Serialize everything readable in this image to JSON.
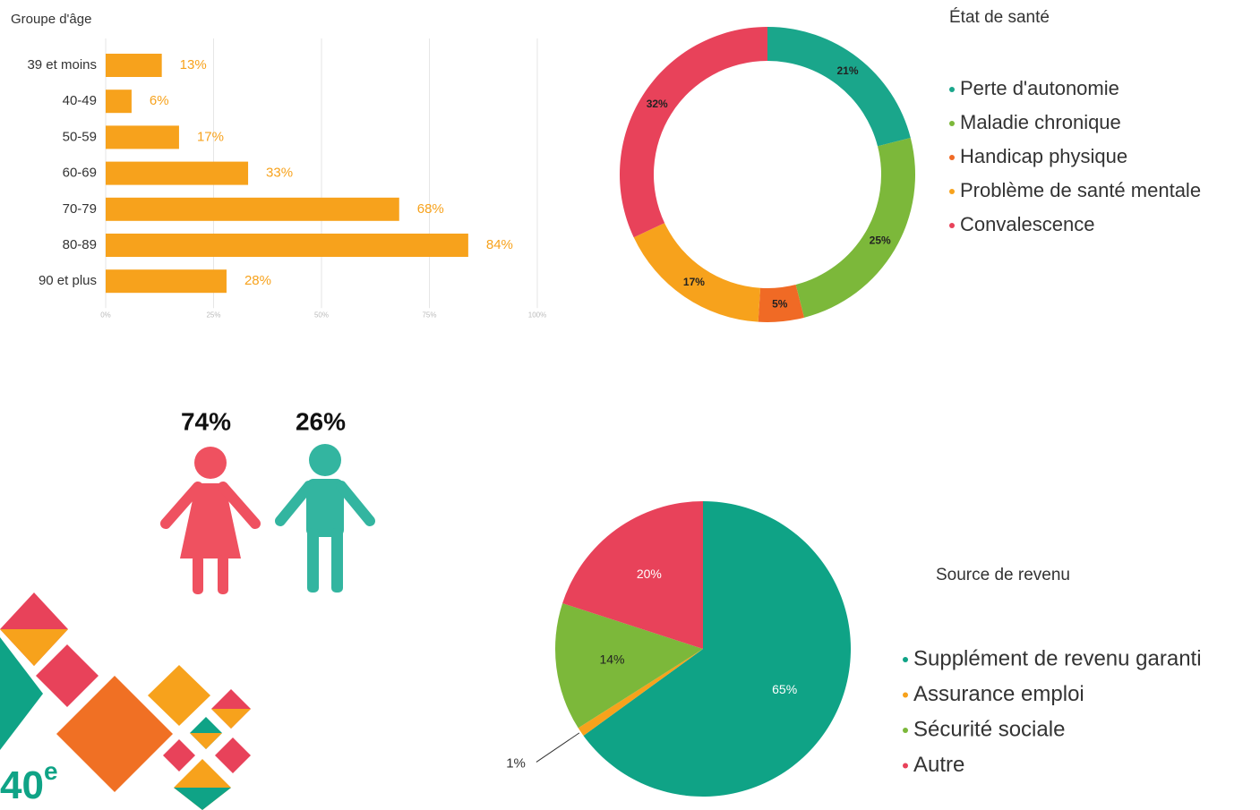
{
  "chart_data": [
    {
      "type": "bar",
      "orientation": "horizontal",
      "title": "Groupe d'âge",
      "categories": [
        "39 et moins",
        "40-49",
        "50-59",
        "60-69",
        "70-79",
        "80-89",
        "90 et plus"
      ],
      "values": [
        13,
        6,
        17,
        33,
        68,
        84,
        28
      ],
      "value_labels": [
        "13%",
        "6%",
        "17%",
        "33%",
        "68%",
        "84%",
        "28%"
      ],
      "color": "#f7a21c",
      "xlim": [
        0,
        100
      ],
      "xticks": [
        {
          "value": 0,
          "label": "0%"
        },
        {
          "value": 25,
          "label": "25%"
        },
        {
          "value": 50,
          "label": "50%"
        },
        {
          "value": 75,
          "label": "75%"
        },
        {
          "value": 100,
          "label": "100%"
        }
      ],
      "grid": true
    },
    {
      "type": "donut",
      "title": "État de santé",
      "categories": [
        "Perte d'autonomie",
        "Maladie chronique",
        "Handicap physique",
        "Problème de santé mentale",
        "Convalescence"
      ],
      "values": [
        21,
        25,
        5,
        17,
        32
      ],
      "value_labels": [
        "21%",
        "25%",
        "5%",
        "17%",
        "32%"
      ],
      "colors": [
        "#1aa68b",
        "#7cb83a",
        "#f06a25",
        "#f7a21c",
        "#e8425a"
      ]
    },
    {
      "type": "pictogram",
      "values": [
        74,
        26
      ],
      "value_labels": [
        "74%",
        "26%"
      ],
      "colors": [
        "#ef5160",
        "#33b5a0"
      ]
    },
    {
      "type": "pie",
      "title": "Source de revenu",
      "categories": [
        "Supplément de revenu garanti",
        "Assurance emploi",
        "Sécurité sociale",
        "Autre"
      ],
      "values": [
        65,
        1,
        14,
        20
      ],
      "value_labels": [
        "65%",
        "1%",
        "14%",
        "20%"
      ],
      "colors": [
        "#0fa386",
        "#f7a21c",
        "#7cb83a",
        "#e8425a"
      ]
    }
  ],
  "logo": {
    "text": "40",
    "suffix": "e"
  }
}
